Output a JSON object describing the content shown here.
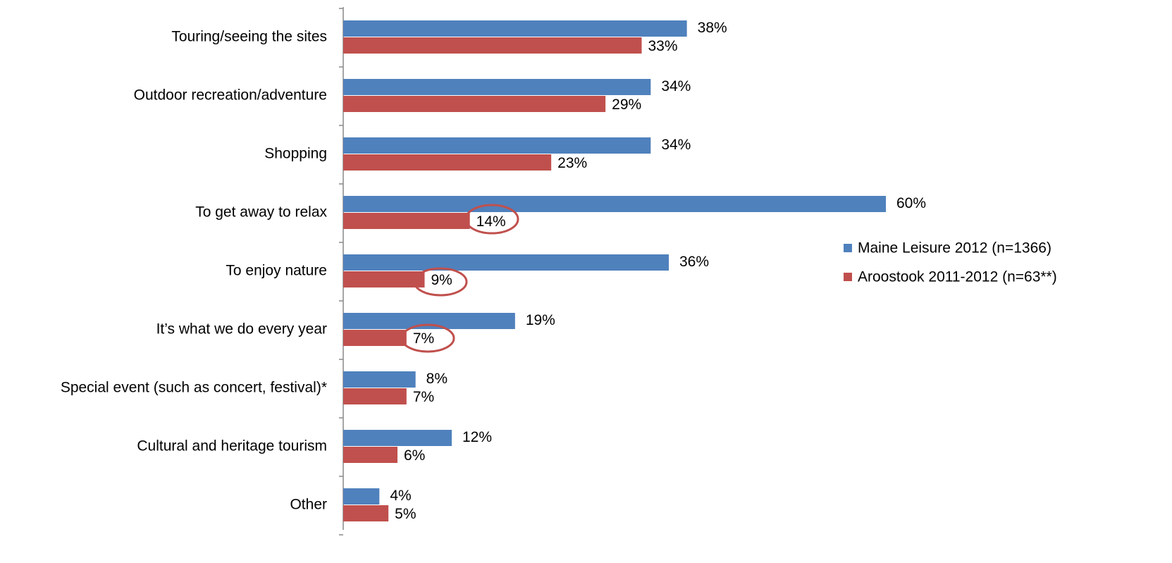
{
  "chart_data": {
    "type": "hbar",
    "categories": [
      "Touring/seeing the sites",
      "Outdoor recreation/adventure",
      "Shopping",
      "To get away to relax",
      "To enjoy nature",
      "It’s what we do every year",
      "Special event (such as concert, festival)*",
      "Cultural and heritage tourism",
      "Other"
    ],
    "series": [
      {
        "name": "Maine Leisure 2012 (n=1366)",
        "color": "#4f81bd",
        "values": [
          38,
          34,
          34,
          60,
          36,
          19,
          8,
          12,
          4
        ],
        "value_labels": [
          "38%",
          "34%",
          "34%",
          "60%",
          "36%",
          "19%",
          "8%",
          "12%",
          "4%"
        ]
      },
      {
        "name": "Aroostook 2011-2012 (n=63**)",
        "color": "#c0504d",
        "values": [
          33,
          29,
          23,
          14,
          9,
          7,
          7,
          6,
          5
        ],
        "value_labels": [
          "33%",
          "29%",
          "23%",
          "14%",
          "9%",
          "7%",
          "7%",
          "6%",
          "5%"
        ]
      }
    ],
    "legend": "right"
  }
}
